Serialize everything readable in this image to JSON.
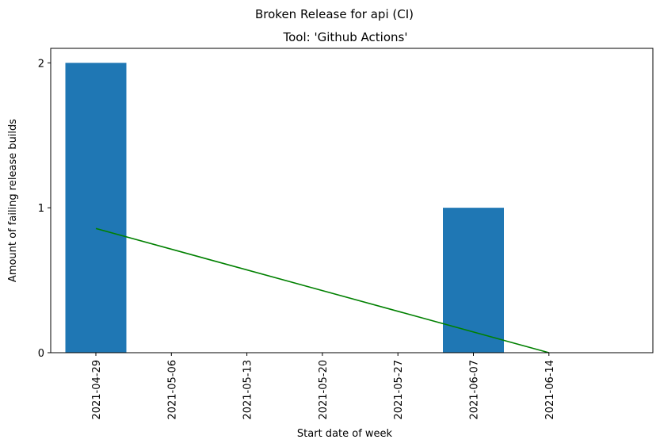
{
  "chart_data": {
    "type": "bar",
    "suptitle": "Broken Release for api (CI)",
    "title": "Tool: 'Github Actions'",
    "xlabel": "Start date of week",
    "ylabel": "Amount of failing release builds",
    "categories": [
      "2021-04-29",
      "2021-05-06",
      "2021-05-13",
      "2021-05-20",
      "2021-05-27",
      "2021-06-07",
      "2021-06-14"
    ],
    "series": [
      {
        "values": [
          2,
          0,
          0,
          0,
          0,
          1,
          0
        ],
        "color": "#1f77b4"
      }
    ],
    "trendline": {
      "color": "#008000",
      "start": {
        "x": "2021-04-29",
        "y": 0.857
      },
      "end": {
        "x": "2021-06-14",
        "y": 0
      }
    },
    "yticks": [
      0,
      1,
      2
    ],
    "ylim": [
      0,
      2.1
    ],
    "grid": false,
    "legend": "none"
  }
}
